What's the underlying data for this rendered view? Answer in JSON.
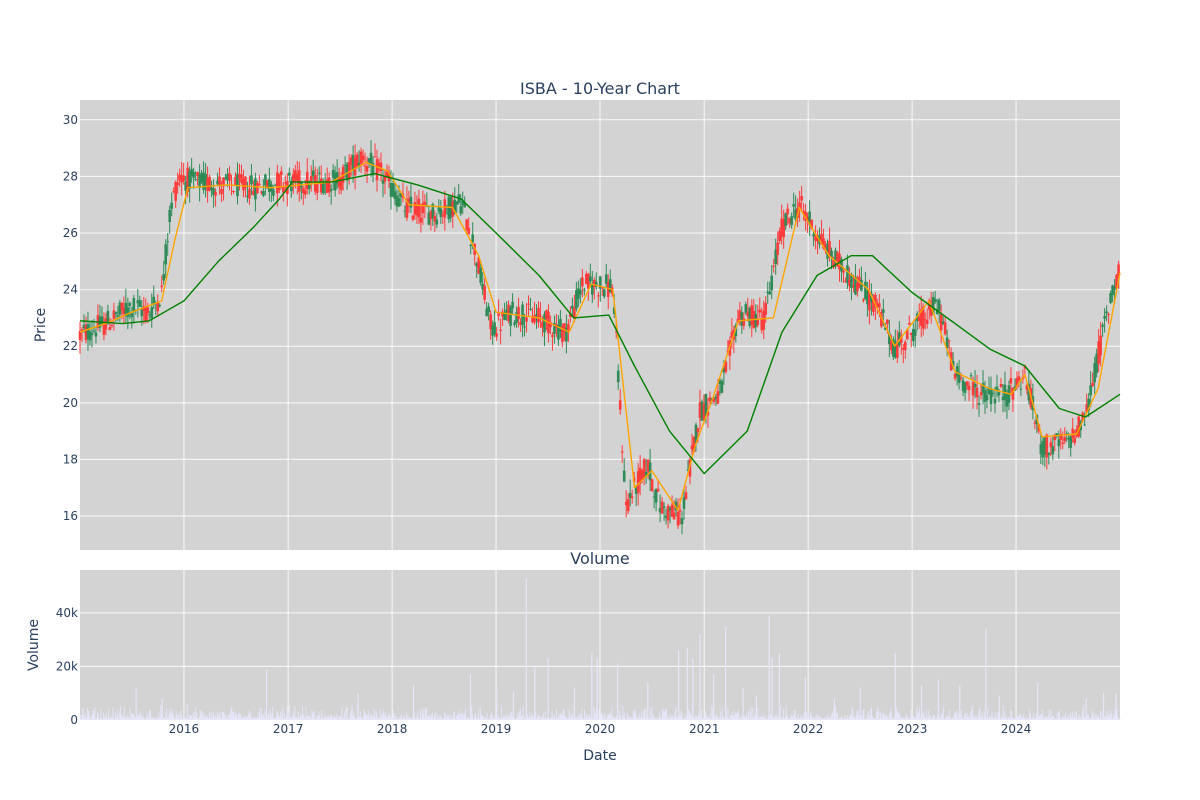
{
  "chart_data": [
    {
      "type": "candlestick",
      "title": "ISBA - 10-Year Chart",
      "xlabel": "",
      "ylabel": "Price",
      "ylim": [
        14.8,
        30.7
      ],
      "yticks": [
        16,
        18,
        20,
        22,
        24,
        26,
        28,
        30
      ],
      "xlim": [
        "2015-01-01",
        "2024-12-31"
      ],
      "xticks": [
        "2016",
        "2017",
        "2018",
        "2019",
        "2020",
        "2021",
        "2022",
        "2023",
        "2024"
      ],
      "grid": true,
      "legend": "none",
      "colors": {
        "up": "#2e8b57",
        "down": "#ff3b3b",
        "ma_short": "#ffa500",
        "ma_long": "#008000",
        "background": "#d3d3d3"
      },
      "price_path": [
        [
          "2015-01-01",
          22.4
        ],
        [
          "2015-04-01",
          22.8
        ],
        [
          "2015-07-01",
          23.4
        ],
        [
          "2015-09-01",
          23.2
        ],
        [
          "2015-10-15",
          23.9
        ],
        [
          "2015-11-15",
          26.9
        ],
        [
          "2015-12-15",
          28.0
        ],
        [
          "2016-02-01",
          27.8
        ],
        [
          "2016-06-01",
          27.7
        ],
        [
          "2016-09-01",
          27.6
        ],
        [
          "2016-12-01",
          27.8
        ],
        [
          "2017-03-01",
          27.8
        ],
        [
          "2017-07-01",
          27.9
        ],
        [
          "2017-09-15",
          28.7
        ],
        [
          "2017-12-01",
          28.0
        ],
        [
          "2018-02-15",
          26.9
        ],
        [
          "2018-06-01",
          26.7
        ],
        [
          "2018-09-01",
          27.1
        ],
        [
          "2018-10-15",
          25.6
        ],
        [
          "2018-12-15",
          22.6
        ],
        [
          "2019-03-01",
          23.2
        ],
        [
          "2019-06-01",
          23.0
        ],
        [
          "2019-09-01",
          22.5
        ],
        [
          "2019-11-01",
          24.2
        ],
        [
          "2020-02-15",
          24.1
        ],
        [
          "2020-04-01",
          16.4
        ],
        [
          "2020-06-15",
          17.8
        ],
        [
          "2020-08-01",
          16.3
        ],
        [
          "2020-10-15",
          16.0
        ],
        [
          "2020-12-15",
          19.7
        ],
        [
          "2021-03-01",
          20.4
        ],
        [
          "2021-05-01",
          23.1
        ],
        [
          "2021-08-01",
          23.0
        ],
        [
          "2021-10-01",
          26.2
        ],
        [
          "2021-12-01",
          27.0
        ],
        [
          "2022-03-01",
          25.5
        ],
        [
          "2022-06-01",
          24.4
        ],
        [
          "2022-09-01",
          23.4
        ],
        [
          "2022-11-01",
          21.9
        ],
        [
          "2023-02-01",
          22.9
        ],
        [
          "2023-04-01",
          23.5
        ],
        [
          "2023-06-01",
          21.0
        ],
        [
          "2023-09-01",
          20.3
        ],
        [
          "2023-12-01",
          20.3
        ],
        [
          "2024-02-01",
          21.0
        ],
        [
          "2024-04-01",
          18.4
        ],
        [
          "2024-07-01",
          18.6
        ],
        [
          "2024-09-01",
          19.5
        ],
        [
          "2024-11-01",
          22.5
        ],
        [
          "2024-12-31",
          25.0
        ]
      ],
      "series": [
        {
          "values": [
            [
              "2015-01-01",
              22.5
            ],
            [
              "2015-04-01",
              22.8
            ],
            [
              "2015-07-01",
              23.2
            ],
            [
              "2015-10-15",
              23.6
            ],
            [
              "2015-12-01",
              25.8
            ],
            [
              "2016-01-15",
              27.6
            ],
            [
              "2016-06-01",
              27.7
            ],
            [
              "2016-11-01",
              27.6
            ],
            [
              "2017-06-01",
              27.8
            ],
            [
              "2017-10-01",
              28.5
            ],
            [
              "2017-12-15",
              28.2
            ],
            [
              "2018-03-01",
              27.0
            ],
            [
              "2018-08-01",
              26.9
            ],
            [
              "2018-11-01",
              25.2
            ],
            [
              "2019-01-01",
              23.2
            ],
            [
              "2019-06-01",
              23.0
            ],
            [
              "2019-09-15",
              22.5
            ],
            [
              "2019-12-01",
              24.2
            ],
            [
              "2020-02-15",
              24.0
            ],
            [
              "2020-05-01",
              17.0
            ],
            [
              "2020-07-01",
              17.6
            ],
            [
              "2020-10-01",
              16.2
            ],
            [
              "2020-12-01",
              18.5
            ],
            [
              "2021-02-01",
              20.2
            ],
            [
              "2021-05-01",
              22.9
            ],
            [
              "2021-09-01",
              23.0
            ],
            [
              "2021-12-01",
              26.9
            ],
            [
              "2022-03-15",
              25.2
            ],
            [
              "2022-08-01",
              24.0
            ],
            [
              "2022-11-01",
              22.0
            ],
            [
              "2023-03-01",
              23.6
            ],
            [
              "2023-06-01",
              21.1
            ],
            [
              "2023-10-01",
              20.5
            ],
            [
              "2023-12-15",
              20.3
            ],
            [
              "2024-02-01",
              21.0
            ],
            [
              "2024-04-01",
              18.8
            ],
            [
              "2024-08-01",
              18.9
            ],
            [
              "2024-10-15",
              20.5
            ],
            [
              "2024-12-31",
              24.6
            ]
          ]
        },
        {
          "values": [
            [
              "2015-01-01",
              22.9
            ],
            [
              "2015-06-01",
              22.8
            ],
            [
              "2015-09-01",
              22.9
            ],
            [
              "2016-01-01",
              23.6
            ],
            [
              "2016-05-01",
              25.0
            ],
            [
              "2016-09-01",
              26.2
            ],
            [
              "2016-12-01",
              27.2
            ],
            [
              "2017-01-15",
              27.8
            ],
            [
              "2017-06-01",
              27.8
            ],
            [
              "2017-11-01",
              28.1
            ],
            [
              "2018-04-01",
              27.7
            ],
            [
              "2018-09-01",
              27.2
            ],
            [
              "2019-01-01",
              26.0
            ],
            [
              "2019-06-01",
              24.5
            ],
            [
              "2019-10-01",
              23.0
            ],
            [
              "2020-02-01",
              23.1
            ],
            [
              "2020-05-01",
              21.3
            ],
            [
              "2020-09-01",
              19.0
            ],
            [
              "2021-01-01",
              17.5
            ],
            [
              "2021-06-01",
              19.0
            ],
            [
              "2021-10-01",
              22.5
            ],
            [
              "2022-02-01",
              24.5
            ],
            [
              "2022-06-01",
              25.2
            ],
            [
              "2022-08-15",
              25.2
            ],
            [
              "2023-01-01",
              23.9
            ],
            [
              "2023-06-01",
              22.8
            ],
            [
              "2023-10-01",
              21.9
            ],
            [
              "2024-02-01",
              21.3
            ],
            [
              "2024-06-01",
              19.8
            ],
            [
              "2024-09-01",
              19.5
            ],
            [
              "2024-12-31",
              20.3
            ]
          ]
        }
      ]
    },
    {
      "type": "bar",
      "title": "Volume",
      "xlabel": "Date",
      "ylabel": "Volume",
      "ylim": [
        0,
        56000
      ],
      "yticks": [
        0,
        20000,
        40000
      ],
      "ytick_labels": [
        "0",
        "20k",
        "40k"
      ],
      "xticks": [
        "2016",
        "2017",
        "2018",
        "2019",
        "2020",
        "2021",
        "2022",
        "2023",
        "2024"
      ],
      "grid": true,
      "colors": {
        "bar": "#e6e6fa",
        "background": "#d3d3d3"
      },
      "spikes": [
        [
          "2015-07-15",
          12000
        ],
        [
          "2015-10-15",
          8000
        ],
        [
          "2016-10-15",
          19000
        ],
        [
          "2017-09-01",
          10000
        ],
        [
          "2018-03-15",
          13000
        ],
        [
          "2018-10-01",
          17000
        ],
        [
          "2019-01-01",
          11000
        ],
        [
          "2019-03-01",
          10500
        ],
        [
          "2019-04-15",
          53000
        ],
        [
          "2019-05-15",
          20000
        ],
        [
          "2019-07-01",
          23000
        ],
        [
          "2019-10-01",
          12000
        ],
        [
          "2019-12-01",
          25000
        ],
        [
          "2019-12-20",
          23000
        ],
        [
          "2020-03-01",
          21000
        ],
        [
          "2020-06-15",
          14000
        ],
        [
          "2020-10-01",
          26000
        ],
        [
          "2020-11-01",
          27000
        ],
        [
          "2020-11-20",
          23000
        ],
        [
          "2020-12-15",
          32000
        ],
        [
          "2021-02-01",
          17000
        ],
        [
          "2021-03-15",
          35000
        ],
        [
          "2021-05-15",
          12000
        ],
        [
          "2021-07-01",
          9000
        ],
        [
          "2021-08-15",
          39000
        ],
        [
          "2021-08-25",
          23000
        ],
        [
          "2021-09-20",
          25000
        ],
        [
          "2021-12-20",
          16000
        ],
        [
          "2022-04-01",
          8000
        ],
        [
          "2022-07-01",
          12000
        ],
        [
          "2022-11-01",
          25000
        ],
        [
          "2023-02-01",
          13000
        ],
        [
          "2023-04-01",
          15000
        ],
        [
          "2023-06-15",
          13000
        ],
        [
          "2023-09-15",
          34000
        ],
        [
          "2023-11-01",
          9000
        ],
        [
          "2024-03-15",
          14000
        ],
        [
          "2024-09-01",
          8000
        ],
        [
          "2024-11-01",
          10000
        ],
        [
          "2024-12-15",
          10000
        ]
      ]
    }
  ]
}
